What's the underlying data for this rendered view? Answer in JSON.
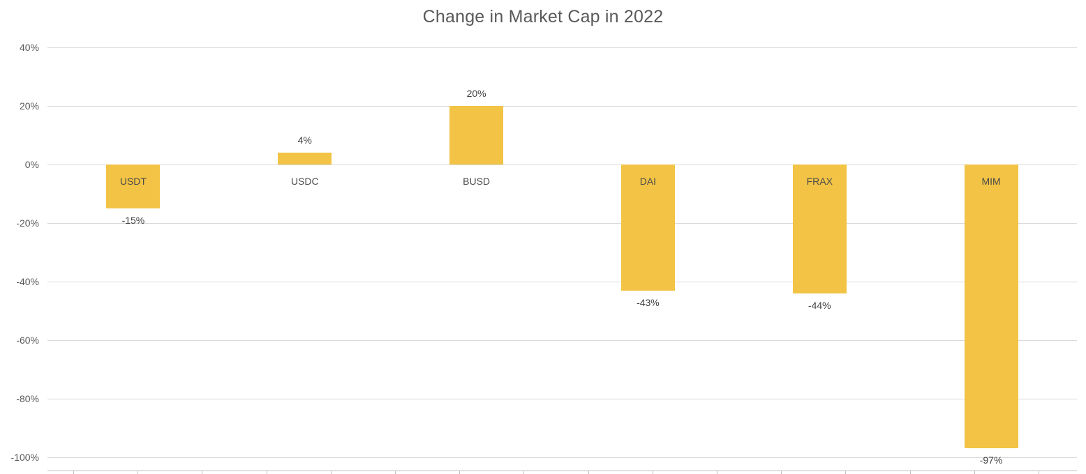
{
  "title": "Change in Market Cap in 2022",
  "colors": {
    "bar_fill": "#f2c344",
    "gridline": "#d9d9d9",
    "axis_line": "#bfbfbf",
    "title_text": "#595959",
    "tick_text": "#595959",
    "label_text": "#404040",
    "background": "#ffffff"
  },
  "chart_data": {
    "type": "bar",
    "title": "Change in Market Cap in 2022",
    "xlabel": "",
    "ylabel": "",
    "categories": [
      "USDT",
      "USDC",
      "BUSD",
      "DAI",
      "FRAX",
      "MIM"
    ],
    "values": [
      -15,
      4,
      20,
      -43,
      -44,
      -97
    ],
    "value_labels": [
      "-15%",
      "4%",
      "20%",
      "-43%",
      "-44%",
      "-97%"
    ],
    "value_label_position": "outside-end",
    "category_label_position": "next-to-zero-axis",
    "ylim": [
      -105,
      40
    ],
    "yticks": [
      40,
      20,
      0,
      -20,
      -40,
      -60,
      -80,
      -100
    ],
    "ytick_labels": [
      "40%",
      "20%",
      "0%",
      "-20%",
      "-40%",
      "-60%",
      "-80%",
      "-100%"
    ],
    "grid": true,
    "legend": false,
    "bar_color": "#f2c344"
  }
}
